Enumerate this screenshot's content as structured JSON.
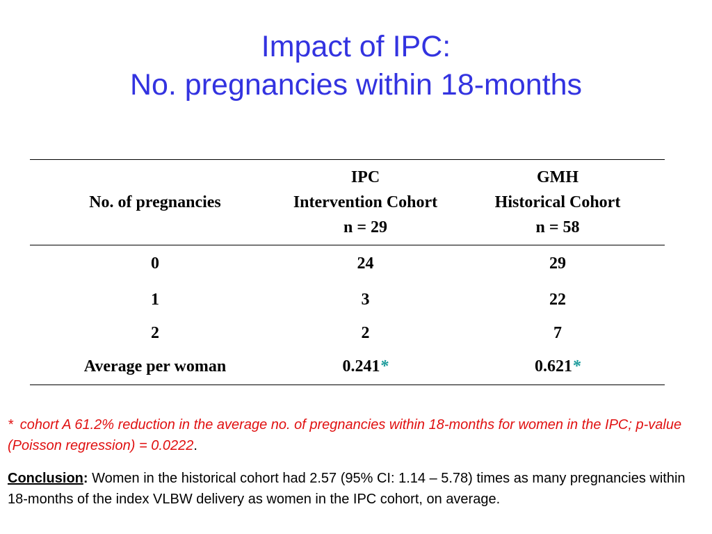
{
  "title": {
    "line1": "Impact of IPC:",
    "line2": "No. pregnancies within 18-months"
  },
  "table": {
    "headers": {
      "col1": "No. of pregnancies",
      "col2": [
        "IPC",
        "Intervention Cohort",
        "n = 29"
      ],
      "col3": [
        "GMH",
        "Historical Cohort",
        "n = 58"
      ]
    },
    "rows": [
      [
        "0",
        "24",
        "29"
      ],
      [
        "1",
        "3",
        "22"
      ],
      [
        "2",
        "2",
        "7"
      ],
      [
        "Average per woman",
        "0.241",
        "0.621"
      ]
    ],
    "marker": "*"
  },
  "footnote": {
    "marker": "*",
    "text": "cohort A 61.2% reduction in the average no. of pregnancies within 18-months for women in the IPC; p-value (Poisson regression) = 0.0222",
    "end": "."
  },
  "conclusion": {
    "label": "Conclusion",
    "colon": ":",
    "text": "Women in the historical cohort had 2.57 (95% CI: 1.14 – 5.78) times as many pregnancies within 18-months of the index VLBW delivery as women in the IPC cohort, on average."
  },
  "colors": {
    "title": "#3333e0",
    "asterisk": "#1a9a9a",
    "footnote": "#e01010"
  }
}
